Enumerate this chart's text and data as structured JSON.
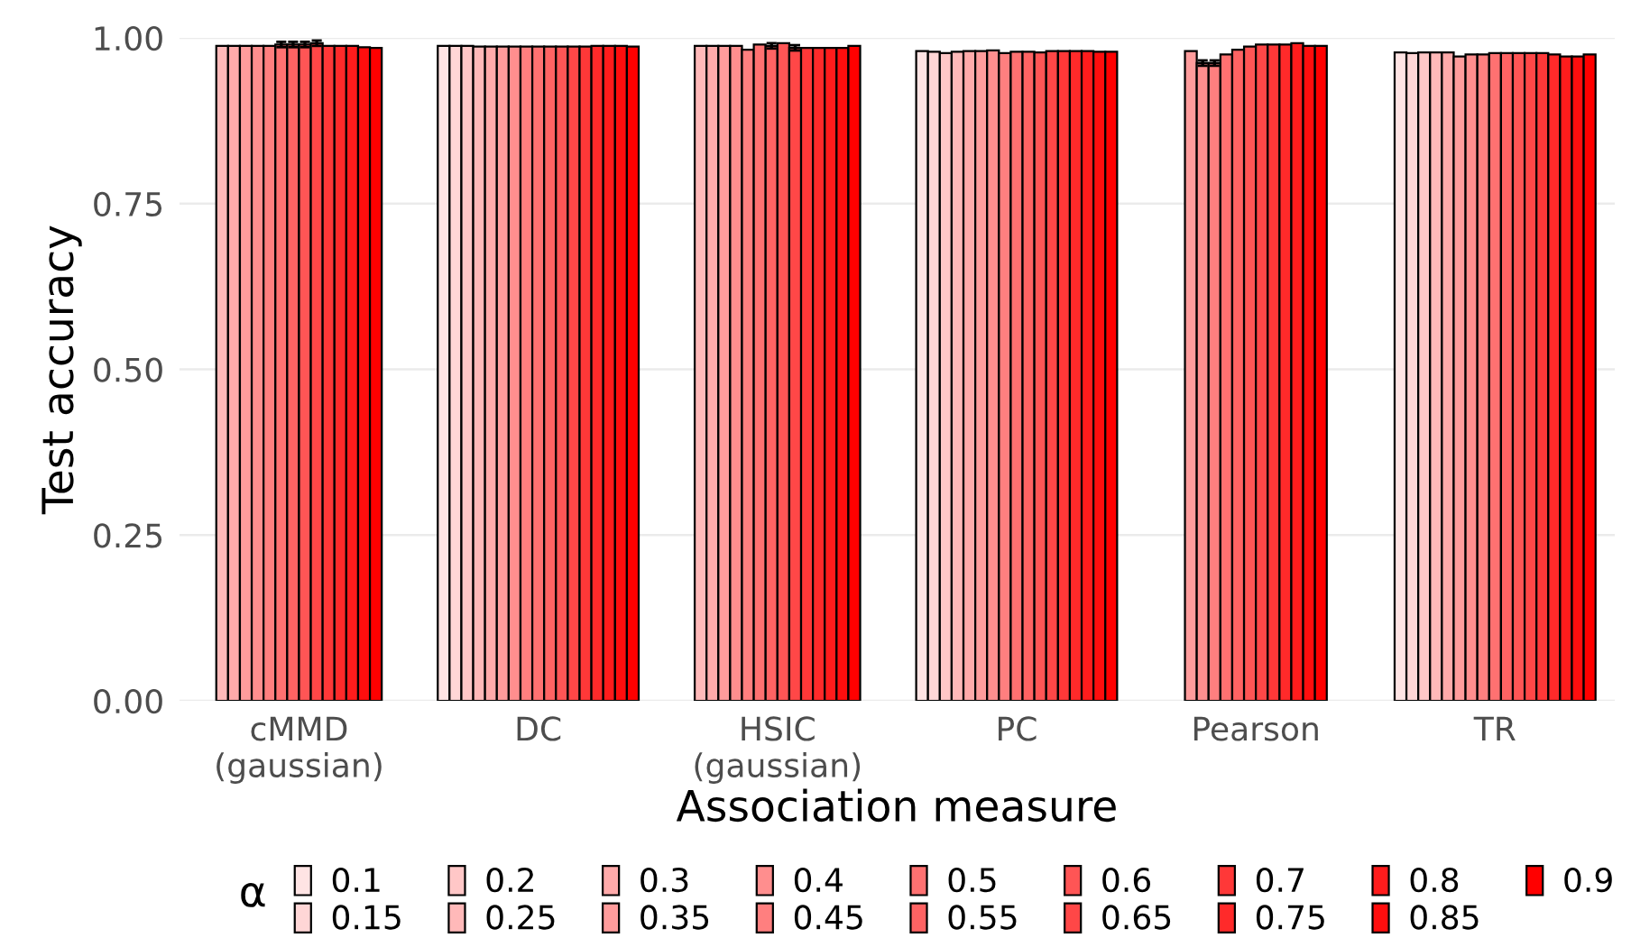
{
  "chart_data": {
    "type": "bar",
    "xlabel": "Association measure",
    "ylabel": "Test accuracy",
    "legend_title": "α",
    "categories": [
      "cMMD\n(gaussian)",
      "DC",
      "HSIC\n(gaussian)",
      "PC",
      "Pearson",
      "TR"
    ],
    "ylim": [
      0,
      1.0
    ],
    "yticks": [
      {
        "value": 0,
        "label": "0.00"
      },
      {
        "value": 0.25,
        "label": "0.25"
      },
      {
        "value": 0.5,
        "label": "0.50"
      },
      {
        "value": 0.75,
        "label": "0.75"
      },
      {
        "value": 1,
        "label": "1.00"
      }
    ],
    "grid": "y",
    "legend": "bottom",
    "series": [
      {
        "name": "0.1",
        "color": "#ffe4e4",
        "values": [
          null,
          0.988,
          null,
          0.98,
          null,
          0.978
        ]
      },
      {
        "name": "0.15",
        "color": "#ffd6d6",
        "values": [
          null,
          0.988,
          null,
          0.979,
          null,
          0.977
        ]
      },
      {
        "name": "0.2",
        "color": "#ffc7c7",
        "values": [
          null,
          0.988,
          null,
          0.977,
          null,
          0.978
        ]
      },
      {
        "name": "0.25",
        "color": "#ffb9b9",
        "values": [
          0.988,
          0.987,
          0.988,
          0.979,
          null,
          0.978
        ]
      },
      {
        "name": "0.3",
        "color": "#ffaaaa",
        "values": [
          0.988,
          0.987,
          0.988,
          0.98,
          null,
          0.978
        ]
      },
      {
        "name": "0.35",
        "color": "#ff9c9c",
        "values": [
          0.988,
          0.987,
          0.988,
          0.98,
          0.98,
          0.972
        ]
      },
      {
        "name": "0.4",
        "color": "#ff8e8e",
        "values": [
          0.988,
          0.987,
          0.988,
          0.981,
          0.962,
          0.975
        ],
        "errors": [
          null,
          null,
          null,
          null,
          0.004,
          null
        ]
      },
      {
        "name": "0.45",
        "color": "#ff7f7f",
        "values": [
          0.988,
          0.987,
          0.982,
          0.977,
          0.962,
          0.975
        ],
        "errors": [
          null,
          null,
          null,
          null,
          0.004,
          null
        ]
      },
      {
        "name": "0.5",
        "color": "#ff7171",
        "values": [
          0.99,
          0.987,
          0.99,
          0.979,
          0.975,
          0.977
        ],
        "errors": [
          0.004,
          null,
          null,
          null,
          null,
          null
        ]
      },
      {
        "name": "0.55",
        "color": "#ff6363",
        "values": [
          0.99,
          0.987,
          0.988,
          0.979,
          0.982,
          0.977
        ],
        "errors": [
          0.004,
          null,
          0.004,
          null,
          null,
          null
        ]
      },
      {
        "name": "0.6",
        "color": "#ff5555",
        "values": [
          0.99,
          0.987,
          0.992,
          0.978,
          0.987,
          0.977
        ],
        "errors": [
          0.004,
          null,
          null,
          null,
          null,
          null
        ]
      },
      {
        "name": "0.65",
        "color": "#ff4747",
        "values": [
          0.992,
          0.987,
          0.985,
          0.98,
          0.99,
          0.977
        ],
        "errors": [
          0.004,
          null,
          0.004,
          null,
          null,
          null
        ]
      },
      {
        "name": "0.7",
        "color": "#ff3838",
        "values": [
          0.988,
          0.987,
          0.985,
          0.98,
          0.99,
          0.977
        ]
      },
      {
        "name": "0.75",
        "color": "#ff2a2a",
        "values": [
          0.988,
          0.988,
          0.985,
          0.98,
          0.99,
          0.975
        ]
      },
      {
        "name": "0.8",
        "color": "#ff1c1c",
        "values": [
          0.988,
          0.988,
          0.985,
          0.98,
          0.992,
          0.972
        ]
      },
      {
        "name": "0.85",
        "color": "#ff0e0e",
        "values": [
          0.986,
          0.988,
          0.985,
          0.979,
          0.988,
          0.972
        ]
      },
      {
        "name": "0.9",
        "color": "#ff0000",
        "values": [
          0.985,
          0.987,
          0.988,
          0.979,
          0.988,
          0.975
        ]
      }
    ]
  }
}
